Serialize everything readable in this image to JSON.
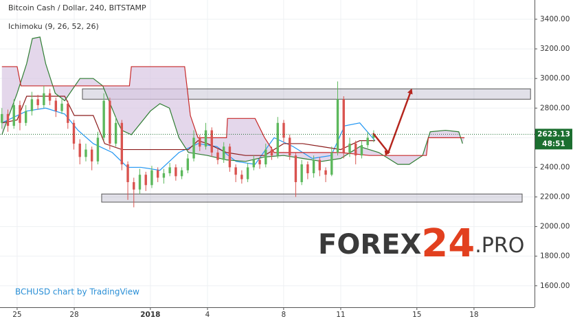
{
  "chart_data": {
    "type": "candlestick",
    "title": "Bitcoin Cash / Dollar, 240, BITSTAMP",
    "subtitle": "Ichimoku (9, 26, 52, 26)",
    "source": "BCHUSD chart by TradingView",
    "countdown": "48:51",
    "up_color": "#5cb85c",
    "down_color": "#d9534f",
    "ylim": [
      1455,
      3530
    ],
    "yticks": [
      {
        "value": 1600,
        "label": "1600.00"
      },
      {
        "value": 1800,
        "label": "1800.00"
      },
      {
        "value": 2000,
        "label": "2000.00"
      },
      {
        "value": 2200,
        "label": "2200.00"
      },
      {
        "value": 2400,
        "label": "2400.00"
      },
      {
        "value": 2600,
        "label": "2600.00"
      },
      {
        "value": 2800,
        "label": "2800.00"
      },
      {
        "value": 3000,
        "label": "3000.00"
      },
      {
        "value": 3200,
        "label": "3200.00"
      },
      {
        "value": 3400,
        "label": "3400.00"
      }
    ],
    "xlim": [
      -0.9,
      27.18
    ],
    "xticks": [
      {
        "value": 0,
        "label": "25"
      },
      {
        "value": 3,
        "label": "28"
      },
      {
        "value": 7,
        "label": "2018"
      },
      {
        "value": 10,
        "label": "4"
      },
      {
        "value": 14,
        "label": "8"
      },
      {
        "value": 17,
        "label": "11"
      },
      {
        "value": 21,
        "label": "15"
      },
      {
        "value": 24,
        "label": "18"
      }
    ],
    "grid": true,
    "series": [
      {
        "x": [
          -0.8,
          -0.485,
          -0.17,
          0.145,
          0.46,
          0.775,
          1.09,
          1.405,
          1.72,
          2.035,
          2.35,
          2.665,
          2.98,
          3.295,
          3.61,
          3.925,
          4.24,
          4.555,
          4.87,
          5.185,
          5.5,
          5.815,
          6.13,
          6.445,
          6.76,
          7.075,
          7.39,
          7.705,
          8.02,
          8.335,
          8.65,
          8.965,
          9.28,
          9.595,
          9.91,
          10.225,
          10.54,
          10.855,
          11.17,
          11.485,
          11.8,
          12.115,
          12.43,
          12.745,
          13.06,
          13.375,
          13.69,
          14.005,
          14.32,
          14.635,
          14.95,
          15.265,
          15.58,
          15.895,
          16.21,
          16.525,
          16.84,
          17.155,
          17.47,
          17.785,
          18.1,
          18.415,
          18.73
        ],
        "open": [
          2700,
          2760,
          2680,
          2820,
          2700,
          2780,
          2860,
          2820,
          2900,
          2850,
          2780,
          2830,
          2700,
          2560,
          2470,
          2520,
          2440,
          2600,
          2850,
          2560,
          2700,
          2420,
          2300,
          2250,
          2350,
          2280,
          2380,
          2330,
          2360,
          2400,
          2340,
          2380,
          2460,
          2600,
          2540,
          2650,
          2500,
          2450,
          2540,
          2400,
          2350,
          2320,
          2400,
          2450,
          2420,
          2520,
          2480,
          2700,
          2600,
          2480,
          2300,
          2420,
          2360,
          2450,
          2380,
          2350,
          2500,
          2860,
          2500,
          2560,
          2480,
          2550,
          2600
        ],
        "high": [
          2800,
          2790,
          2860,
          2850,
          2820,
          2910,
          2890,
          2950,
          2930,
          2870,
          2870,
          2850,
          2720,
          2590,
          2560,
          2540,
          2640,
          2900,
          2870,
          2740,
          2720,
          2440,
          2330,
          2390,
          2370,
          2410,
          2400,
          2390,
          2430,
          2420,
          2400,
          2490,
          2650,
          2620,
          2700,
          2670,
          2530,
          2570,
          2560,
          2420,
          2380,
          2430,
          2480,
          2470,
          2560,
          2540,
          2740,
          2720,
          2620,
          2500,
          2450,
          2440,
          2480,
          2470,
          2400,
          2540,
          2980,
          2880,
          2600,
          2580,
          2580,
          2640,
          2650
        ],
        "low": [
          2660,
          2640,
          2660,
          2650,
          2680,
          2750,
          2790,
          2800,
          2820,
          2740,
          2760,
          2660,
          2520,
          2420,
          2440,
          2380,
          2420,
          2580,
          2520,
          2540,
          2380,
          2180,
          2130,
          2220,
          2240,
          2260,
          2300,
          2290,
          2340,
          2310,
          2320,
          2360,
          2440,
          2510,
          2520,
          2470,
          2420,
          2430,
          2370,
          2300,
          2290,
          2300,
          2380,
          2390,
          2400,
          2450,
          2460,
          2570,
          2450,
          2200,
          2280,
          2320,
          2330,
          2340,
          2300,
          2340,
          2480,
          2460,
          2470,
          2420,
          2460,
          2530,
          2570
        ],
        "close": [
          2760,
          2680,
          2820,
          2700,
          2780,
          2860,
          2820,
          2900,
          2850,
          2780,
          2830,
          2700,
          2560,
          2470,
          2520,
          2440,
          2600,
          2850,
          2560,
          2700,
          2420,
          2300,
          2250,
          2350,
          2280,
          2380,
          2330,
          2360,
          2400,
          2340,
          2380,
          2460,
          2600,
          2540,
          2650,
          2500,
          2450,
          2540,
          2400,
          2350,
          2320,
          2400,
          2450,
          2420,
          2520,
          2480,
          2700,
          2600,
          2480,
          2300,
          2420,
          2360,
          2450,
          2380,
          2350,
          2500,
          2860,
          2500,
          2560,
          2480,
          2550,
          2600,
          2623.13
        ]
      }
    ],
    "lines": [
      {
        "color": "#2196f3",
        "x": [
          -0.8,
          0.5,
          1.5,
          2.5,
          3.2,
          4,
          5,
          5.8,
          6.5,
          7.5,
          8.5,
          9.5,
          10.5,
          11.5,
          12.5,
          13.5,
          14.5,
          15.5,
          16.5,
          17.2,
          18,
          18.8
        ],
        "values": [
          2700,
          2780,
          2800,
          2760,
          2650,
          2560,
          2500,
          2400,
          2400,
          2380,
          2500,
          2560,
          2540,
          2440,
          2420,
          2600,
          2540,
          2460,
          2480,
          2680,
          2700,
          2580
        ]
      },
      {
        "color": "#8b1a1a",
        "x": [
          -0.8,
          0,
          0.5,
          2.5,
          3,
          4,
          4.6,
          5.5,
          7,
          9,
          9.5,
          10,
          11,
          12,
          13,
          14,
          15,
          16,
          17,
          18,
          18.8
        ],
        "values": [
          2700,
          2720,
          2880,
          2880,
          2750,
          2750,
          2560,
          2520,
          2520,
          2520,
          2580,
          2560,
          2500,
          2480,
          2480,
          2560,
          2560,
          2540,
          2520,
          2580,
          2580
        ]
      },
      {
        "color": "#2e7d32",
        "x": [
          -0.8,
          0,
          0.5,
          0.8,
          1.2,
          1.5,
          2,
          2.5,
          3.3,
          4,
          4.5,
          5.3,
          5.5,
          6,
          7,
          7.5,
          8,
          8.5,
          9,
          10,
          11,
          12,
          13,
          14,
          15,
          16,
          17,
          18,
          19,
          20,
          20.6,
          21.3,
          21.7,
          22.5,
          23.2,
          23.4
        ],
        "values": [
          2620,
          2900,
          3100,
          3270,
          3280,
          3100,
          2900,
          2850,
          3000,
          3000,
          2950,
          2700,
          2650,
          2620,
          2780,
          2830,
          2800,
          2600,
          2500,
          2480,
          2450,
          2440,
          2470,
          2480,
          2460,
          2440,
          2460,
          2540,
          2500,
          2420,
          2420,
          2480,
          2640,
          2650,
          2640,
          2560
        ]
      },
      {
        "color": "#c62828",
        "x": [
          -0.8,
          0,
          0.2,
          3.4,
          5.9,
          6,
          8.8,
          9.1,
          9.5,
          11,
          11.05,
          12.5,
          13,
          13.5,
          17,
          18.5,
          20,
          21.5,
          21.6,
          23.5
        ],
        "values": [
          3080,
          3080,
          2950,
          2950,
          2950,
          3080,
          3080,
          2750,
          2600,
          2600,
          2730,
          2730,
          2600,
          2500,
          2500,
          2480,
          2480,
          2480,
          2600,
          2600
        ]
      }
    ],
    "cloud_color": "#d9c6e3",
    "zones": [
      {
        "x": [
          3.43,
          26.97
        ],
        "y": [
          2860,
          2930
        ]
      },
      {
        "x": [
          4.44,
          26.53
        ],
        "y": [
          2165,
          2220
        ]
      }
    ],
    "arrow": {
      "color": "#b5261e",
      "x": [
        18.7,
        19.5,
        20.7
      ],
      "y": [
        2630,
        2500,
        2920
      ]
    },
    "last_price_color": "#1b6e2f"
  },
  "logo": {
    "text": "FOREX",
    "number": "24",
    "suffix": ".PRO"
  }
}
